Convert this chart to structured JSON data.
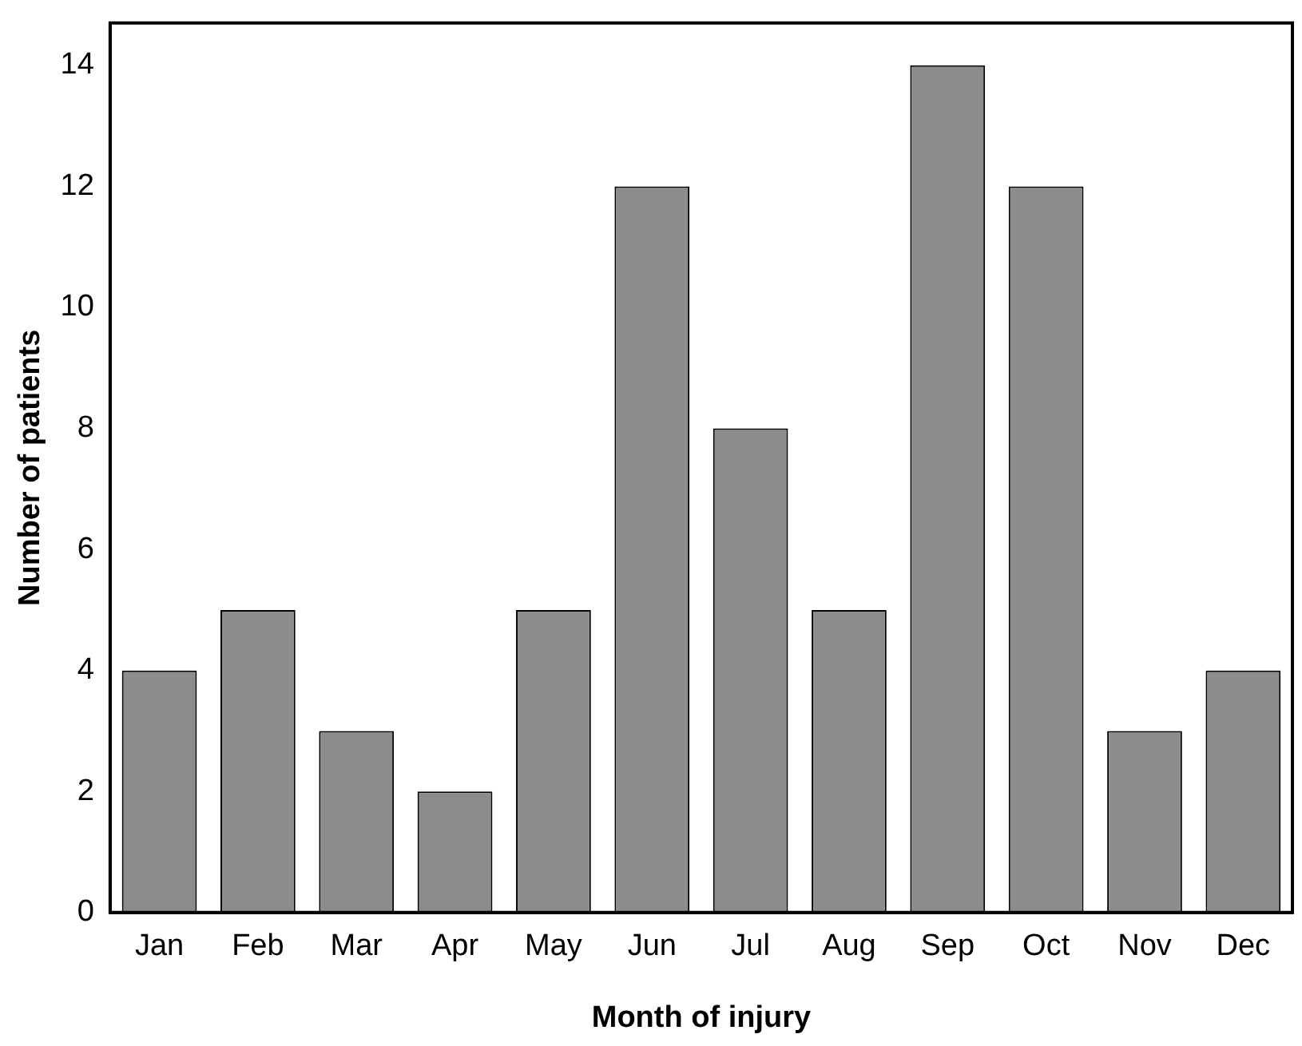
{
  "chart_data": {
    "type": "bar",
    "xlabel": "Month of injury",
    "ylabel": "Number of patients",
    "categories": [
      "Jan",
      "Feb",
      "Mar",
      "Apr",
      "May",
      "Jun",
      "Jul",
      "Aug",
      "Sep",
      "Oct",
      "Nov",
      "Dec"
    ],
    "values": [
      4,
      5,
      3,
      2,
      5,
      12,
      8,
      5,
      14,
      12,
      3,
      4
    ],
    "color": "#8c8c8c",
    "ylim": [
      0,
      14.7
    ],
    "yticks": [
      0,
      2,
      4,
      6,
      8,
      10,
      12,
      14
    ],
    "grid": false,
    "legend": false
  }
}
